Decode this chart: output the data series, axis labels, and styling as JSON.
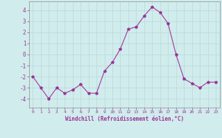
{
  "x": [
    0,
    1,
    2,
    3,
    4,
    5,
    6,
    7,
    8,
    9,
    10,
    11,
    12,
    13,
    14,
    15,
    16,
    17,
    18,
    19,
    20,
    21,
    22,
    23
  ],
  "y": [
    -2.0,
    -3.0,
    -4.0,
    -3.0,
    -3.5,
    -3.2,
    -2.7,
    -3.5,
    -3.5,
    -1.5,
    -0.7,
    0.5,
    2.3,
    2.5,
    3.5,
    4.3,
    3.8,
    2.8,
    0.0,
    -2.2,
    -2.6,
    -3.0,
    -2.5,
    -2.5
  ],
  "line_color": "#993399",
  "marker": "*",
  "marker_size": 3,
  "bg_color": "#d0ecec",
  "grid_color": "#b8d8d8",
  "xlabel": "Windchill (Refroidissement éolien,°C)",
  "xlabel_color": "#993399",
  "tick_color": "#993399",
  "label_color": "#993399",
  "ylim": [
    -4.8,
    4.8
  ],
  "xlim": [
    -0.5,
    23.5
  ],
  "yticks": [
    -4,
    -3,
    -2,
    -1,
    0,
    1,
    2,
    3,
    4
  ],
  "xticks": [
    0,
    1,
    2,
    3,
    4,
    5,
    6,
    7,
    8,
    9,
    10,
    11,
    12,
    13,
    14,
    15,
    16,
    17,
    18,
    19,
    20,
    21,
    22,
    23
  ],
  "figwidth": 3.2,
  "figheight": 2.0,
  "dpi": 100
}
